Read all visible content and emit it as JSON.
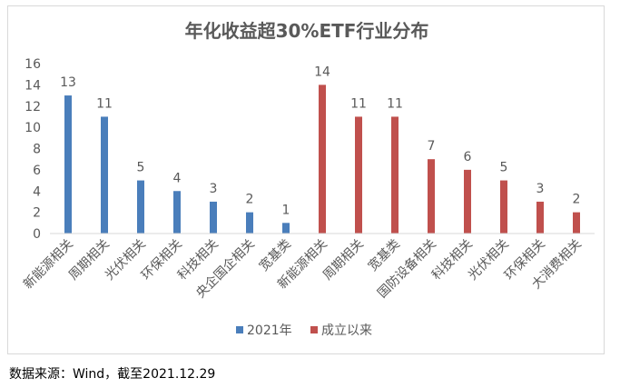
{
  "source_note": "数据来源：Wind，截至2021.12.29",
  "colors": {
    "series_2021": "#4a7ebb",
    "series_since_inception": "#c0504d",
    "axis": "#d9d9d9",
    "text": "#595959"
  },
  "chart_data": {
    "type": "bar",
    "title": "年化收益超30%ETF行业分布",
    "xlabel": "",
    "ylabel": "",
    "ylim": [
      0,
      16
    ],
    "yticks": [
      0,
      2,
      4,
      6,
      8,
      10,
      12,
      14,
      16
    ],
    "grid": false,
    "legend_position": "bottom",
    "categories": [
      "新能源相关",
      "周期相关",
      "光伏相关",
      "环保相关",
      "科技相关",
      "央企国企相关",
      "宽基类",
      "新能源相关",
      "周期相关",
      "宽基类",
      "国防设备相关",
      "科技相关",
      "光伏相关",
      "环保相关",
      "大消费相关"
    ],
    "series": [
      {
        "name": "2021年",
        "color": "#4a7ebb",
        "values": [
          13,
          11,
          5,
          4,
          3,
          2,
          1,
          null,
          null,
          null,
          null,
          null,
          null,
          null,
          null
        ]
      },
      {
        "name": "成立以来",
        "color": "#c0504d",
        "values": [
          null,
          null,
          null,
          null,
          null,
          null,
          null,
          14,
          11,
          11,
          7,
          6,
          5,
          3,
          2
        ]
      }
    ]
  }
}
